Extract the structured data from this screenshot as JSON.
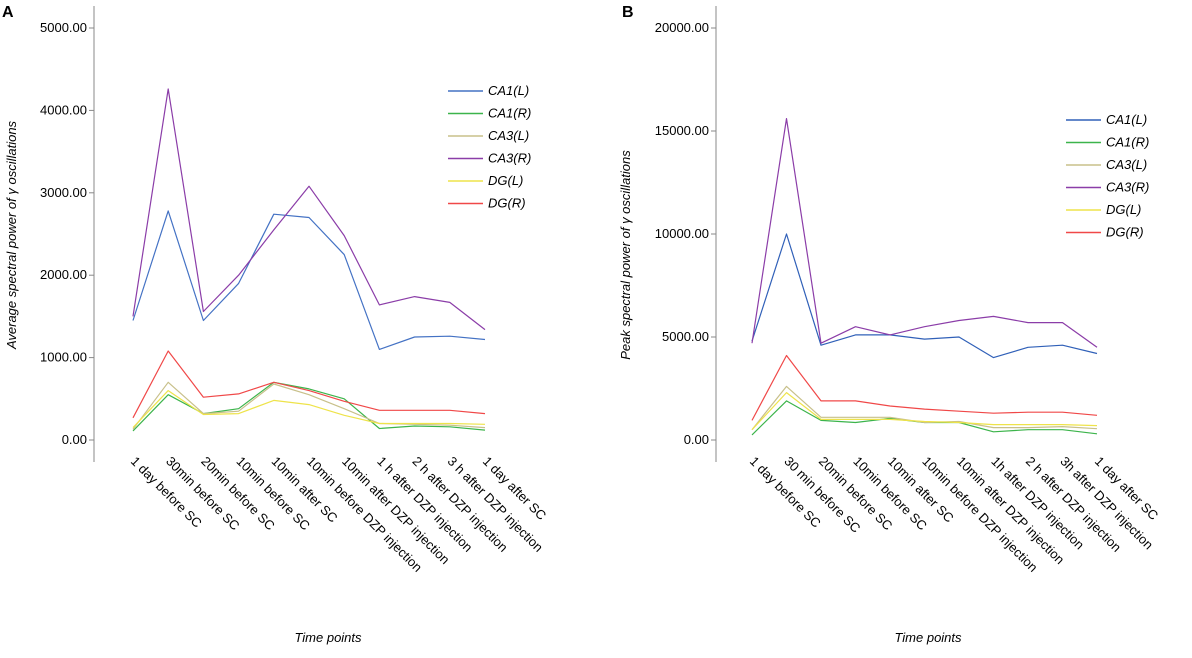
{
  "chart_data": [
    {
      "type": "line",
      "panel_label": "A",
      "ylabel": "Average spectral power of γ oscillations",
      "xlabel": "Time points",
      "ylim": [
        0,
        5000
      ],
      "yticks": [
        "0.00",
        "1000.00",
        "2000.00",
        "3000.00",
        "4000.00",
        "5000.00"
      ],
      "ytick_values": [
        0,
        1000,
        2000,
        3000,
        4000,
        5000
      ],
      "categories": [
        "1 day before SC",
        "30min before SC",
        "20min before SC",
        "10min before SC",
        "10min after SC",
        "10min before DZP injection",
        "10min after DZP injection",
        "1 h after DZP injection",
        "2 h after DZP injection",
        "3 h after DZP injection",
        "1 day after SC"
      ],
      "legend_position": "top-right",
      "series": [
        {
          "name": "CA1(L)",
          "color": "#4472C4",
          "values": [
            1450,
            2780,
            1450,
            1900,
            2740,
            2700,
            2250,
            1100,
            1250,
            1260,
            1220
          ]
        },
        {
          "name": "CA1(R)",
          "color": "#3CB44B",
          "values": [
            110,
            550,
            320,
            380,
            700,
            620,
            500,
            140,
            170,
            160,
            120
          ]
        },
        {
          "name": "CA3(L)",
          "color": "#C8C08A",
          "values": [
            130,
            700,
            320,
            350,
            680,
            550,
            380,
            200,
            190,
            180,
            150
          ]
        },
        {
          "name": "CA3(R)",
          "color": "#8B3DA8",
          "values": [
            1500,
            4260,
            1560,
            2000,
            2550,
            3080,
            2480,
            1640,
            1740,
            1670,
            1340
          ]
        },
        {
          "name": "DG(L)",
          "color": "#EEE34A",
          "values": [
            150,
            600,
            310,
            320,
            480,
            430,
            300,
            200,
            200,
            200,
            190
          ]
        },
        {
          "name": "DG(R)",
          "color": "#F04848",
          "values": [
            270,
            1080,
            520,
            560,
            700,
            600,
            470,
            360,
            360,
            360,
            320
          ]
        }
      ]
    },
    {
      "type": "line",
      "panel_label": "B",
      "ylabel": "Peak spectral power of γ oscillations",
      "xlabel": "Time points",
      "ylim": [
        0,
        20000
      ],
      "yticks": [
        "0.00",
        "5000.00",
        "10000.00",
        "15000.00",
        "20000.00"
      ],
      "ytick_values": [
        0,
        5000,
        10000,
        15000,
        20000
      ],
      "categories": [
        "1 day before SC",
        "30 min before SC",
        "20min before SC",
        "10min before SC",
        "10min after SC",
        "10min before DZP injection",
        "10min after DZP injection",
        "1h after DZP injection",
        "2 h after DZP injection",
        "3h after DZP injection",
        "1 day after SC"
      ],
      "legend_position": "top-right",
      "series": [
        {
          "name": "CA1(L)",
          "color": "#3060B8",
          "values": [
            4800,
            10000,
            4600,
            5100,
            5100,
            4900,
            5000,
            4000,
            4500,
            4600,
            4200
          ]
        },
        {
          "name": "CA1(R)",
          "color": "#3CB44B",
          "values": [
            250,
            1900,
            950,
            850,
            1050,
            850,
            850,
            400,
            500,
            500,
            300
          ]
        },
        {
          "name": "CA3(L)",
          "color": "#C8C08A",
          "values": [
            500,
            2600,
            1100,
            1100,
            1100,
            850,
            900,
            600,
            600,
            650,
            550
          ]
        },
        {
          "name": "CA3(R)",
          "color": "#8B3DA8",
          "values": [
            4700,
            15600,
            4700,
            5500,
            5100,
            5500,
            5800,
            6000,
            5700,
            5700,
            4500
          ]
        },
        {
          "name": "DG(L)",
          "color": "#EEE34A",
          "values": [
            500,
            2300,
            1000,
            1000,
            1000,
            900,
            850,
            750,
            750,
            750,
            700
          ]
        },
        {
          "name": "DG(R)",
          "color": "#F04848",
          "values": [
            950,
            4100,
            1900,
            1900,
            1650,
            1500,
            1400,
            1300,
            1350,
            1350,
            1200
          ]
        }
      ]
    }
  ]
}
